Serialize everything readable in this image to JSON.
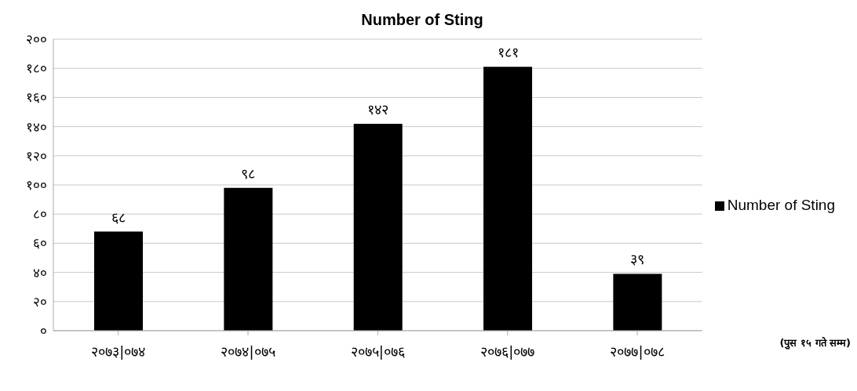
{
  "chart_data": {
    "type": "bar",
    "title": "Number of Sting",
    "categories": [
      "२०७३|०७४",
      "२०७४|०७५",
      "२०७५|०७६",
      "२०७६|०७७",
      "२०७७|०७८"
    ],
    "series": [
      {
        "name": "Number of Sting",
        "color": "#000000",
        "values": [
          68,
          98,
          142,
          181,
          39
        ],
        "value_labels": [
          "६८",
          "९८",
          "१४२",
          "१८१",
          "३९"
        ]
      }
    ],
    "ylim": [
      0,
      200
    ],
    "yticks": [
      {
        "value": 0,
        "label": "०"
      },
      {
        "value": 20,
        "label": "२०"
      },
      {
        "value": 40,
        "label": "४०"
      },
      {
        "value": 60,
        "label": "६०"
      },
      {
        "value": 80,
        "label": "८०"
      },
      {
        "value": 100,
        "label": "१००"
      },
      {
        "value": 120,
        "label": "१२०"
      },
      {
        "value": 140,
        "label": "१४०"
      },
      {
        "value": 160,
        "label": "१६०"
      },
      {
        "value": 180,
        "label": "१८०"
      },
      {
        "value": 200,
        "label": "२००"
      }
    ],
    "grid": "y",
    "legend": "right",
    "annotations": [
      "(पुस १५ गते सम्म)"
    ]
  }
}
